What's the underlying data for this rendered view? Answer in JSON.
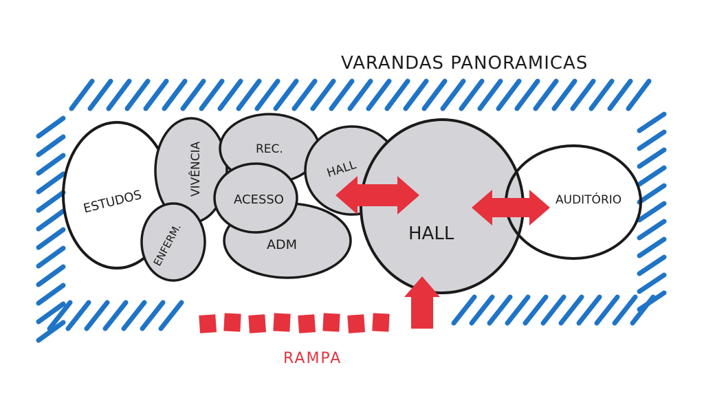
{
  "title": "VARANDAS PANORAMICAS",
  "footer_label": "RAMPA",
  "colors": {
    "hatch": "#1f74c6",
    "zone_fill": "#d4d4d8",
    "outline": "#1a1a1a",
    "arrow": "#e5323d"
  },
  "zones": {
    "estudos": "ESTUDOS",
    "vivencia": "VIVÊNCIA",
    "enferm": "ENFERM.",
    "rec": "REC.",
    "acesso": "ACESSO",
    "adm": "ADM",
    "hall_small": "HALL",
    "hall_main": "HALL",
    "auditorio": "AUDITÓRIO"
  }
}
